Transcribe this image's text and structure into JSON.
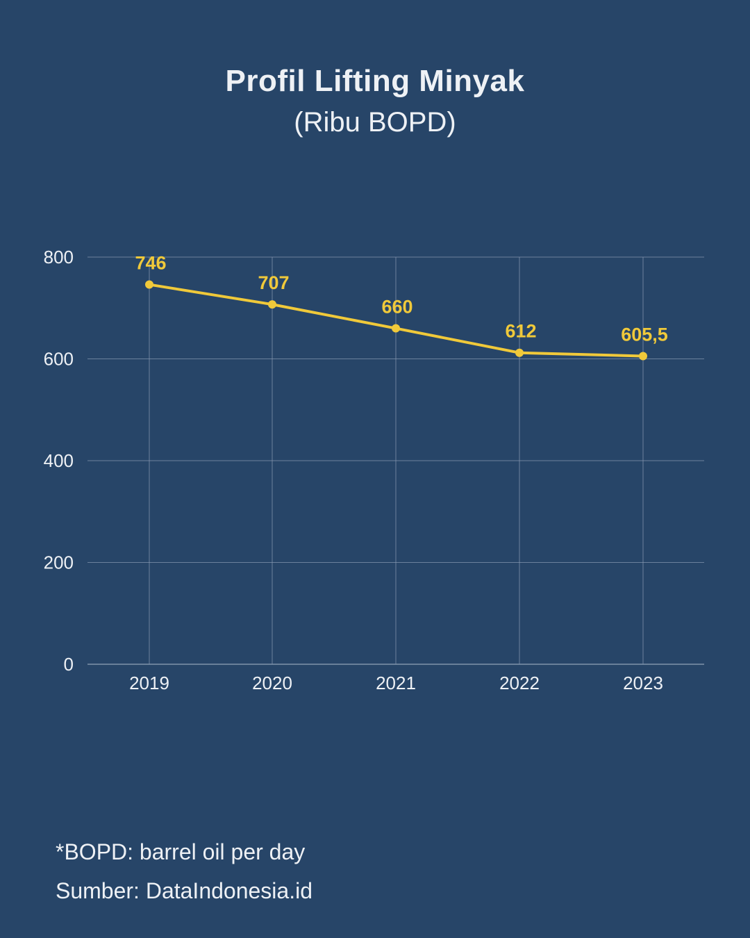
{
  "chart_data": {
    "type": "line",
    "title": "Profil Lifting Minyak",
    "subtitle": "(Ribu BOPD)",
    "xlabel": "",
    "ylabel": "",
    "categories": [
      "2019",
      "2020",
      "2021",
      "2022",
      "2023"
    ],
    "series": [
      {
        "values": [
          746,
          707,
          660,
          612,
          605.5
        ],
        "labels": [
          "746",
          "707",
          "660",
          "612",
          "605,5"
        ],
        "color": "#f0c93a"
      }
    ],
    "yticks": [
      "0",
      "200",
      "400",
      "600",
      "800"
    ],
    "ylim": [
      0,
      800
    ],
    "grid": true
  },
  "footnotes": {
    "note": "*BOPD: barrel oil per day",
    "source": "Sumber: DataIndonesia.id"
  },
  "colors": {
    "background": "#274568",
    "line": "#f0c93a",
    "grid": "#8a9bb3",
    "text": "#eef1f5"
  }
}
